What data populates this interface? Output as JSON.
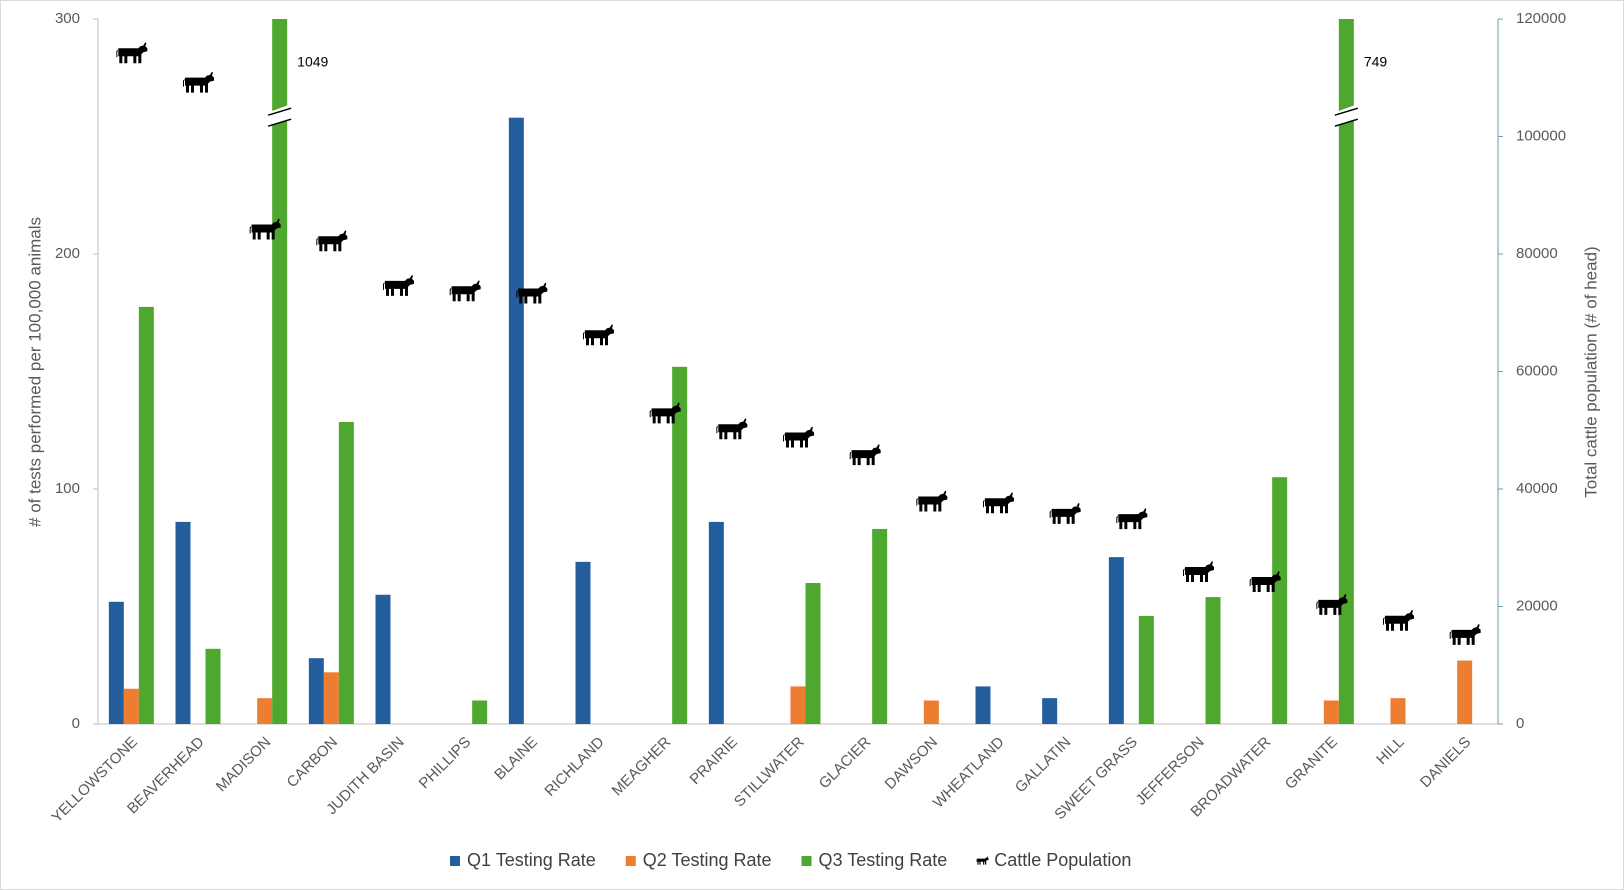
{
  "chart_data": {
    "type": "bar",
    "y_label": "# of tests performed per 100,000 animals",
    "y2_label": "Total cattle population (# of head)",
    "categories": [
      "YELLOWSTONE",
      "BEAVERHEAD",
      "MADISON",
      "CARBON",
      "JUDITH BASIN",
      "PHILLIPS",
      "BLAINE",
      "RICHLAND",
      "MEAGHER",
      "PRAIRIE",
      "STILLWATER",
      "GLACIER",
      "DAWSON",
      "WHEATLAND",
      "GALLATIN",
      "SWEET GRASS",
      "JEFFERSON",
      "BROADWATER",
      "GRANITE",
      "HILL",
      "DANIELS"
    ],
    "series": [
      {
        "name": "Q1 Testing Rate",
        "color": "#255e9c",
        "values": [
          52,
          86,
          null,
          28,
          55,
          null,
          258,
          69,
          null,
          86,
          null,
          null,
          null,
          16,
          11,
          71,
          null,
          null,
          null,
          null,
          null
        ]
      },
      {
        "name": "Q2 Testing Rate",
        "color": "#ed7d31",
        "values": [
          15,
          null,
          11,
          22,
          null,
          null,
          null,
          null,
          null,
          null,
          16,
          null,
          10,
          null,
          null,
          null,
          null,
          null,
          10,
          11,
          27
        ]
      },
      {
        "name": "Q3 Testing Rate",
        "color": "#4ea72e",
        "values": [
          177.5,
          32,
          1049,
          128.5,
          null,
          10,
          null,
          null,
          152,
          null,
          60,
          83,
          null,
          null,
          null,
          46,
          54,
          105,
          749,
          null,
          null
        ]
      },
      {
        "name": "Cattle Population",
        "color": "#000000",
        "axis": "y2",
        "marker": "cow",
        "values": [
          114000,
          109000,
          84000,
          82000,
          74400,
          73500,
          73100,
          66000,
          52700,
          50000,
          48600,
          45600,
          37700,
          37400,
          35600,
          34700,
          25700,
          24000,
          20100,
          17400,
          15000
        ]
      }
    ],
    "ylim": [
      0,
      300
    ],
    "yticks": [
      0,
      100,
      200,
      300
    ],
    "y2lim": [
      0,
      120000
    ],
    "y2ticks": [
      0,
      20000,
      40000,
      60000,
      80000,
      100000,
      120000
    ],
    "legend": "bottom"
  }
}
